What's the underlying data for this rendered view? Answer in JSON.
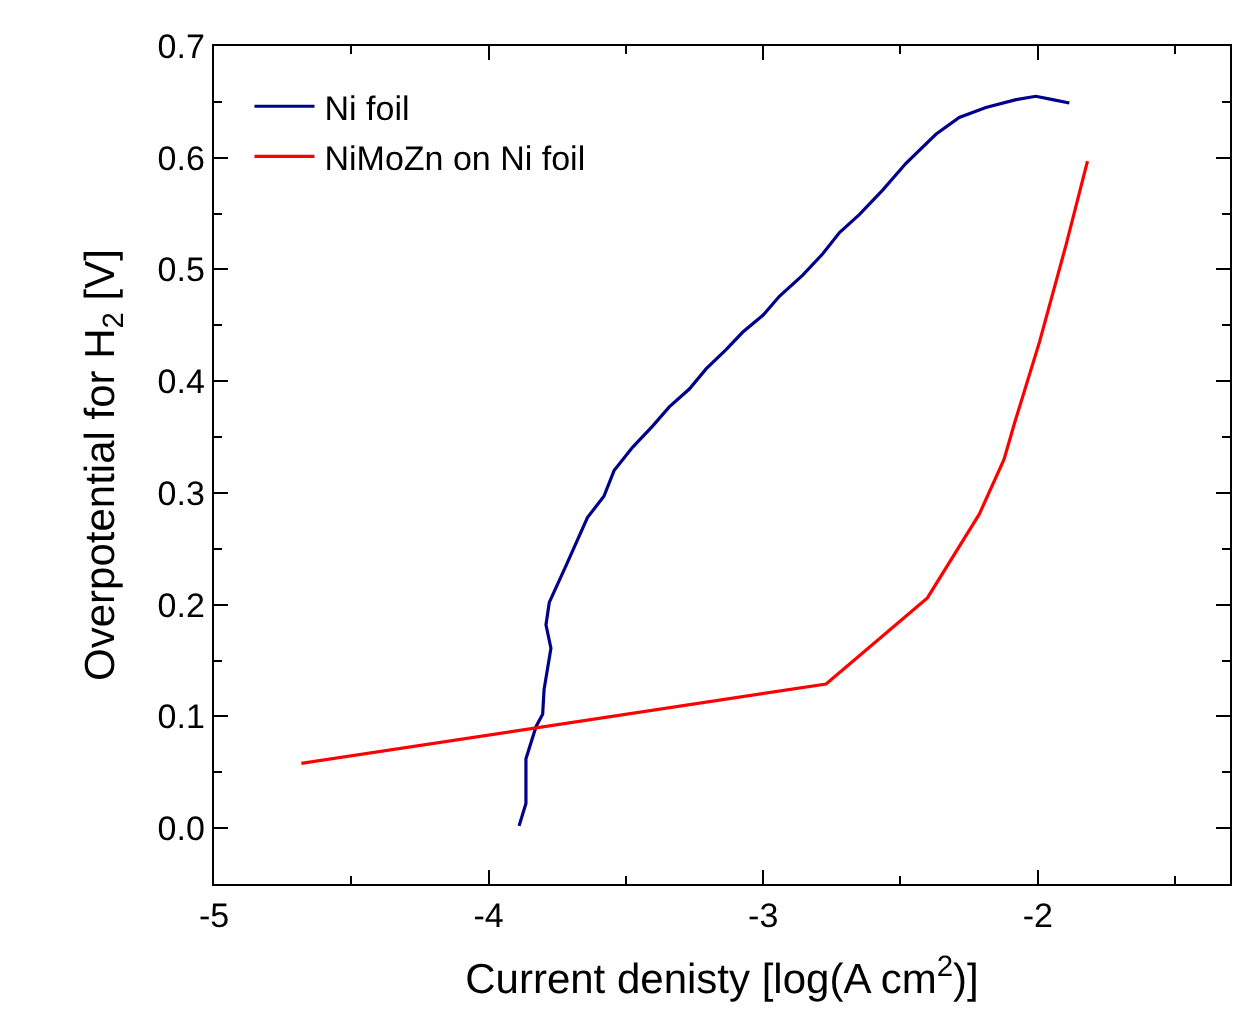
{
  "chart_data": {
    "type": "line",
    "xlabel": "Current denisty [log(A cm$^{2}$)]",
    "ylabel": "Overpotential for H$_{2}$ [V]",
    "xlim": [
      -5,
      -1.3
    ],
    "xticks": [
      -5,
      -4,
      -3,
      -2
    ],
    "ylim": [
      -0.05,
      0.7
    ],
    "yticks": [
      {
        "value": 0,
        "label": "0.0"
      },
      0.1,
      0.2,
      0.3,
      0.4,
      0.5,
      0.6,
      0.7
    ],
    "legend": "top left",
    "grid": false,
    "marker": "none",
    "line_style": "solid",
    "series": [
      {
        "name": "Ni foil",
        "color": "#00008b",
        "x": [
          -3.889,
          -3.864,
          -3.864,
          -3.827,
          -3.803,
          -3.798,
          -3.773,
          -3.791,
          -3.779,
          -3.718,
          -3.64,
          -3.58,
          -3.543,
          -3.475,
          -3.402,
          -3.342,
          -3.269,
          -3.208,
          -3.136,
          -3.074,
          -3.001,
          -2.941,
          -2.856,
          -2.783,
          -2.722,
          -2.65,
          -2.565,
          -2.48,
          -2.371,
          -2.286,
          -2.189,
          -2.079,
          -2.007,
          -1.946,
          -1.885
        ],
        "values": [
          0.002,
          0.022,
          0.062,
          0.091,
          0.102,
          0.124,
          0.161,
          0.182,
          0.202,
          0.235,
          0.278,
          0.297,
          0.32,
          0.341,
          0.36,
          0.377,
          0.393,
          0.411,
          0.428,
          0.444,
          0.459,
          0.476,
          0.495,
          0.514,
          0.533,
          0.549,
          0.571,
          0.595,
          0.621,
          0.636,
          0.645,
          0.652,
          0.655,
          0.652,
          0.649
        ]
      },
      {
        "name": "NiMoZn on Ni foil",
        "color": "#ff0000",
        "x": [
          -4.682,
          -2.771,
          -2.402,
          -2.213,
          -2.123,
          -2.084,
          -1.994,
          -1.897,
          -1.819
        ],
        "values": [
          0.058,
          0.129,
          0.206,
          0.281,
          0.33,
          0.363,
          0.435,
          0.522,
          0.597
        ]
      }
    ]
  }
}
